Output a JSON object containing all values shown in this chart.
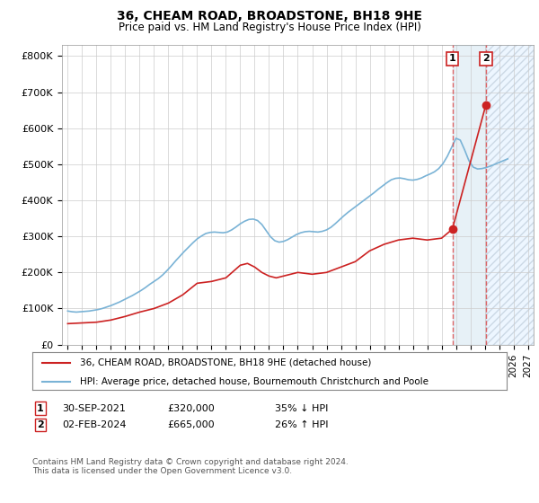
{
  "title": "36, CHEAM ROAD, BROADSTONE, BH18 9HE",
  "subtitle": "Price paid vs. HM Land Registry's House Price Index (HPI)",
  "ylim": [
    0,
    830000
  ],
  "yticks": [
    0,
    100000,
    200000,
    300000,
    400000,
    500000,
    600000,
    700000,
    800000
  ],
  "ytick_labels": [
    "£0",
    "£100K",
    "£200K",
    "£300K",
    "£400K",
    "£500K",
    "£600K",
    "£700K",
    "£800K"
  ],
  "hpi_color": "#7ab3d6",
  "price_color": "#cc2222",
  "dashed_color": "#dd4444",
  "background_color": "#ffffff",
  "grid_color": "#cccccc",
  "vline1_x": 2021.75,
  "vline2_x": 2024.08,
  "legend_line1": "36, CHEAM ROAD, BROADSTONE, BH18 9HE (detached house)",
  "legend_line2": "HPI: Average price, detached house, Bournemouth Christchurch and Poole",
  "table_row1": [
    "1",
    "30-SEP-2021",
    "£320,000",
    "35% ↓ HPI"
  ],
  "table_row2": [
    "2",
    "02-FEB-2024",
    "£665,000",
    "26% ↑ HPI"
  ],
  "footer": "Contains HM Land Registry data © Crown copyright and database right 2024.\nThis data is licensed under the Open Government Licence v3.0.",
  "xlim_left": 1994.6,
  "xlim_right": 2027.4,
  "hpi_x": [
    1995.0,
    1995.3,
    1995.6,
    1995.9,
    1996.2,
    1996.5,
    1996.8,
    1997.1,
    1997.4,
    1997.7,
    1998.0,
    1998.3,
    1998.6,
    1998.9,
    1999.2,
    1999.5,
    1999.8,
    2000.1,
    2000.4,
    2000.7,
    2001.0,
    2001.3,
    2001.6,
    2001.9,
    2002.2,
    2002.5,
    2002.8,
    2003.1,
    2003.4,
    2003.7,
    2004.0,
    2004.3,
    2004.6,
    2004.9,
    2005.2,
    2005.5,
    2005.8,
    2006.1,
    2006.4,
    2006.7,
    2007.0,
    2007.3,
    2007.6,
    2007.9,
    2008.2,
    2008.5,
    2008.8,
    2009.1,
    2009.4,
    2009.7,
    2010.0,
    2010.3,
    2010.6,
    2010.9,
    2011.2,
    2011.5,
    2011.8,
    2012.1,
    2012.4,
    2012.7,
    2013.0,
    2013.3,
    2013.6,
    2013.9,
    2014.2,
    2014.5,
    2014.8,
    2015.1,
    2015.4,
    2015.7,
    2016.0,
    2016.3,
    2016.6,
    2016.9,
    2017.2,
    2017.5,
    2017.8,
    2018.1,
    2018.4,
    2018.7,
    2019.0,
    2019.3,
    2019.6,
    2019.9,
    2020.2,
    2020.5,
    2020.8,
    2021.1,
    2021.4,
    2021.7,
    2022.0,
    2022.3,
    2022.6,
    2022.9,
    2023.2,
    2023.5,
    2023.8,
    2024.1,
    2024.4,
    2024.7,
    2025.0,
    2025.3,
    2025.6
  ],
  "hpi_y": [
    93000,
    91000,
    90000,
    91000,
    92000,
    93000,
    95000,
    97000,
    100000,
    104000,
    108000,
    113000,
    118000,
    124000,
    130000,
    136000,
    143000,
    150000,
    158000,
    167000,
    175000,
    183000,
    193000,
    205000,
    218000,
    232000,
    245000,
    258000,
    270000,
    282000,
    293000,
    301000,
    308000,
    311000,
    312000,
    311000,
    310000,
    312000,
    318000,
    326000,
    335000,
    342000,
    347000,
    348000,
    344000,
    333000,
    316000,
    299000,
    288000,
    284000,
    286000,
    291000,
    298000,
    305000,
    310000,
    313000,
    314000,
    313000,
    312000,
    314000,
    318000,
    325000,
    335000,
    346000,
    357000,
    367000,
    376000,
    385000,
    394000,
    403000,
    412000,
    421000,
    431000,
    440000,
    449000,
    457000,
    461000,
    462000,
    460000,
    457000,
    456000,
    458000,
    462000,
    468000,
    473000,
    479000,
    488000,
    502000,
    522000,
    547000,
    572000,
    567000,
    540000,
    510000,
    492000,
    487000,
    488000,
    491000,
    495000,
    500000,
    505000,
    510000,
    515000
  ],
  "price_x": [
    1995.0,
    1996.0,
    1997.0,
    1998.0,
    1999.0,
    2000.0,
    2001.0,
    2002.0,
    2003.0,
    2004.0,
    2005.0,
    2006.0,
    2007.0,
    2007.5,
    2008.0,
    2008.5,
    2009.0,
    2009.5,
    2010.0,
    2011.0,
    2012.0,
    2013.0,
    2014.0,
    2015.0,
    2016.0,
    2017.0,
    2018.0,
    2019.0,
    2020.0,
    2021.0,
    2021.75,
    2024.08
  ],
  "price_y": [
    58000,
    60000,
    62000,
    68000,
    78000,
    90000,
    100000,
    115000,
    138000,
    170000,
    175000,
    185000,
    220000,
    225000,
    215000,
    200000,
    190000,
    185000,
    190000,
    200000,
    195000,
    200000,
    215000,
    230000,
    260000,
    278000,
    290000,
    295000,
    290000,
    295000,
    320000,
    665000
  ],
  "dot1_x": 2021.75,
  "dot1_y": 320000,
  "dot2_x": 2024.08,
  "dot2_y": 665000
}
